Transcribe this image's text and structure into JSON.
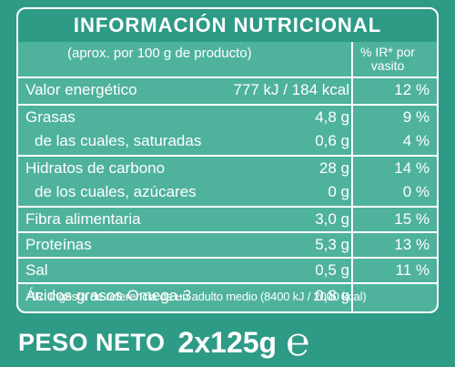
{
  "title": "INFORMACIÓN NUTRICIONAL",
  "header": {
    "left": "(aprox. por 100 g de producto)",
    "right_line1": "% IR* por",
    "right_line2": "vasito"
  },
  "rows": [
    {
      "label": "Valor energético",
      "value": "777 kJ / 184 kcal",
      "pct": "12 %"
    },
    {
      "label": "Grasas",
      "value": "4,8 g",
      "pct": "9 %"
    },
    {
      "label": "de las cuales, saturadas",
      "value": "0,6 g",
      "pct": "4 %"
    },
    {
      "label": "Hidratos de carbono",
      "value": "28 g",
      "pct": "14 %"
    },
    {
      "label": "de los cuales, azúcares",
      "value": "0 g",
      "pct": "0 %"
    },
    {
      "label": "Fibra alimentaria",
      "value": "3,0 g",
      "pct": "15 %"
    },
    {
      "label": "Proteínas",
      "value": "5,3 g",
      "pct": "13 %"
    },
    {
      "label": "Sal",
      "value": "0,5 g",
      "pct": "11 %"
    },
    {
      "label": "Ácidos grasos Omega-3",
      "value": "0,8 g",
      "pct": ""
    }
  ],
  "footnote": "*IR: Ingesta de referencia de un adulto medio (8400 kJ / 2000 kcal)",
  "net_weight": {
    "label": "PESO NETO",
    "value": "2x125g",
    "estimated_mark": "℮"
  },
  "colors": {
    "background": "#2e9b86",
    "table": "#4fb29c",
    "lines": "#ffffff"
  }
}
